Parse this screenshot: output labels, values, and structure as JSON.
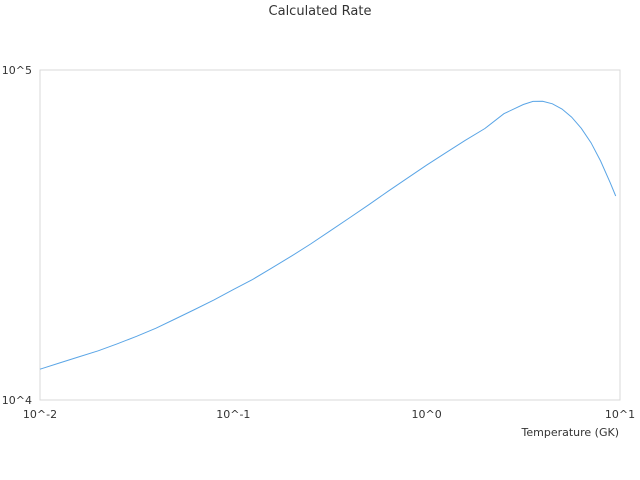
{
  "chart_data": {
    "type": "line",
    "title": "Calculated Rate",
    "xlabel": "Temperature (GK)",
    "ylabel": "",
    "x_scale": "log",
    "y_scale": "log",
    "xlim": [
      0.01,
      10
    ],
    "ylim": [
      10000,
      100000
    ],
    "x_ticks": [
      "10^-2",
      "10^-1",
      "10^0",
      "10^1"
    ],
    "y_ticks": [
      "10^4",
      "10^5"
    ],
    "grid": false,
    "legend": "none",
    "series": [
      {
        "color": "#5aa5e6",
        "x": [
          0.01,
          0.0126,
          0.0158,
          0.02,
          0.0251,
          0.0316,
          0.0398,
          0.05,
          0.0631,
          0.0794,
          0.1,
          0.126,
          0.158,
          0.2,
          0.251,
          0.316,
          0.398,
          0.5,
          0.631,
          0.794,
          1.0,
          1.26,
          1.58,
          2.0,
          2.51,
          3.16,
          3.55,
          3.98,
          4.47,
          5.01,
          5.62,
          6.31,
          7.08,
          7.94,
          8.91,
          9.5
        ],
        "y": [
          12400,
          12950,
          13500,
          14100,
          14800,
          15600,
          16500,
          17600,
          18800,
          20100,
          21600,
          23200,
          25100,
          27300,
          29700,
          32500,
          35600,
          39000,
          42900,
          47000,
          51500,
          56200,
          61200,
          66500,
          73700,
          78600,
          80300,
          80400,
          79000,
          76200,
          72000,
          66600,
          60200,
          53000,
          45500,
          41500
        ]
      }
    ]
  }
}
